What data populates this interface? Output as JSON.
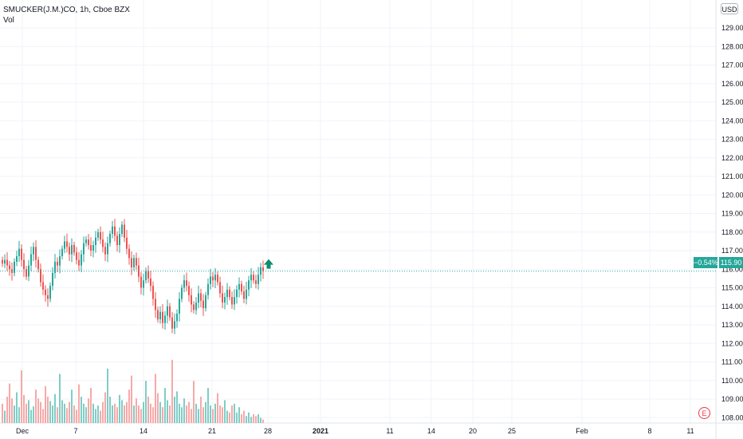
{
  "legend": {
    "symbol_line": "SMUCKER(J.M.)CO, 1h, Cboe BZX",
    "volume_label": "Vol"
  },
  "currency_button": "USD",
  "earnings_badge": "E",
  "last_price_label": "115.90",
  "change_label": "−0.54%",
  "colors": {
    "up": "#26a69a",
    "down": "#ef5350",
    "vol_up": "#7fcdc6",
    "vol_down": "#f7a9a8",
    "grid": "#f0f3fa",
    "price_line": "#26a69a",
    "arrow": "#0a8f6f"
  },
  "chart_data": {
    "type": "candlestick",
    "title": "SMUCKER(J.M.)CO, 1h, Cboe BZX",
    "y_ticks": [
      "129.00",
      "128.00",
      "127.00",
      "126.00",
      "125.00",
      "124.00",
      "123.00",
      "122.00",
      "121.00",
      "120.00",
      "119.00",
      "118.00",
      "117.00",
      "116.00",
      "115.00",
      "114.00",
      "113.00",
      "112.00",
      "111.00",
      "110.00",
      "109.00",
      "108.00"
    ],
    "ylim": [
      107.6,
      129.5
    ],
    "x_ticks": [
      "Dec",
      "7",
      "14",
      "21",
      "28",
      "2021",
      "11",
      "14",
      "20",
      "25",
      "Feb",
      "8",
      "11"
    ],
    "last_price": 115.9,
    "close": [
      116.3,
      116.5,
      116.2,
      116.0,
      115.8,
      116.4,
      116.7,
      117.1,
      116.5,
      116.0,
      115.6,
      116.2,
      116.8,
      117.2,
      116.5,
      116.0,
      115.3,
      114.9,
      114.6,
      114.4,
      115.1,
      115.8,
      116.4,
      116.2,
      116.7,
      117.1,
      117.5,
      117.2,
      116.8,
      117.3,
      116.9,
      116.5,
      116.2,
      116.8,
      117.4,
      117.6,
      117.3,
      117.0,
      117.3,
      117.7,
      118.0,
      117.6,
      117.2,
      116.8,
      117.4,
      117.9,
      118.3,
      117.8,
      117.3,
      117.9,
      118.4,
      117.7,
      117.1,
      116.6,
      116.1,
      116.6,
      116.2,
      115.6,
      115.0,
      115.4,
      115.9,
      115.5,
      115.1,
      114.4,
      113.8,
      113.3,
      113.7,
      113.1,
      113.5,
      114.0,
      113.4,
      112.8,
      113.2,
      113.6,
      114.4,
      115.0,
      115.4,
      115.1,
      114.6,
      114.1,
      113.8,
      114.2,
      114.7,
      114.3,
      113.9,
      114.6,
      115.2,
      115.6,
      115.4,
      115.7,
      115.3,
      114.7,
      114.2,
      114.5,
      114.9,
      114.5,
      114.1,
      114.5,
      114.9,
      115.2,
      114.8,
      114.4,
      114.9,
      115.4,
      115.7,
      115.4,
      115.2,
      115.7,
      116.1,
      115.9
    ],
    "volume_scale_max": 100,
    "volume": [
      22,
      14,
      30,
      45,
      28,
      20,
      35,
      18,
      60,
      32,
      22,
      26,
      15,
      19,
      38,
      28,
      24,
      16,
      42,
      30,
      25,
      20,
      33,
      18,
      56,
      26,
      22,
      17,
      24,
      38,
      20,
      15,
      44,
      30,
      22,
      18,
      28,
      40,
      22,
      16,
      20,
      14,
      24,
      35,
      62,
      30,
      20,
      22,
      18,
      32,
      26,
      20,
      24,
      38,
      54,
      20,
      28,
      20,
      16,
      24,
      48,
      30,
      22,
      18,
      56,
      34,
      24,
      18,
      40,
      26,
      20,
      72,
      30,
      36,
      22,
      18,
      28,
      20,
      24,
      16,
      48,
      22,
      16,
      30,
      18,
      24,
      40,
      20,
      16,
      22,
      34,
      20,
      18,
      26,
      14,
      12,
      20,
      22,
      12,
      18,
      10,
      14,
      8,
      12,
      7,
      10,
      8,
      10,
      6,
      4
    ]
  }
}
